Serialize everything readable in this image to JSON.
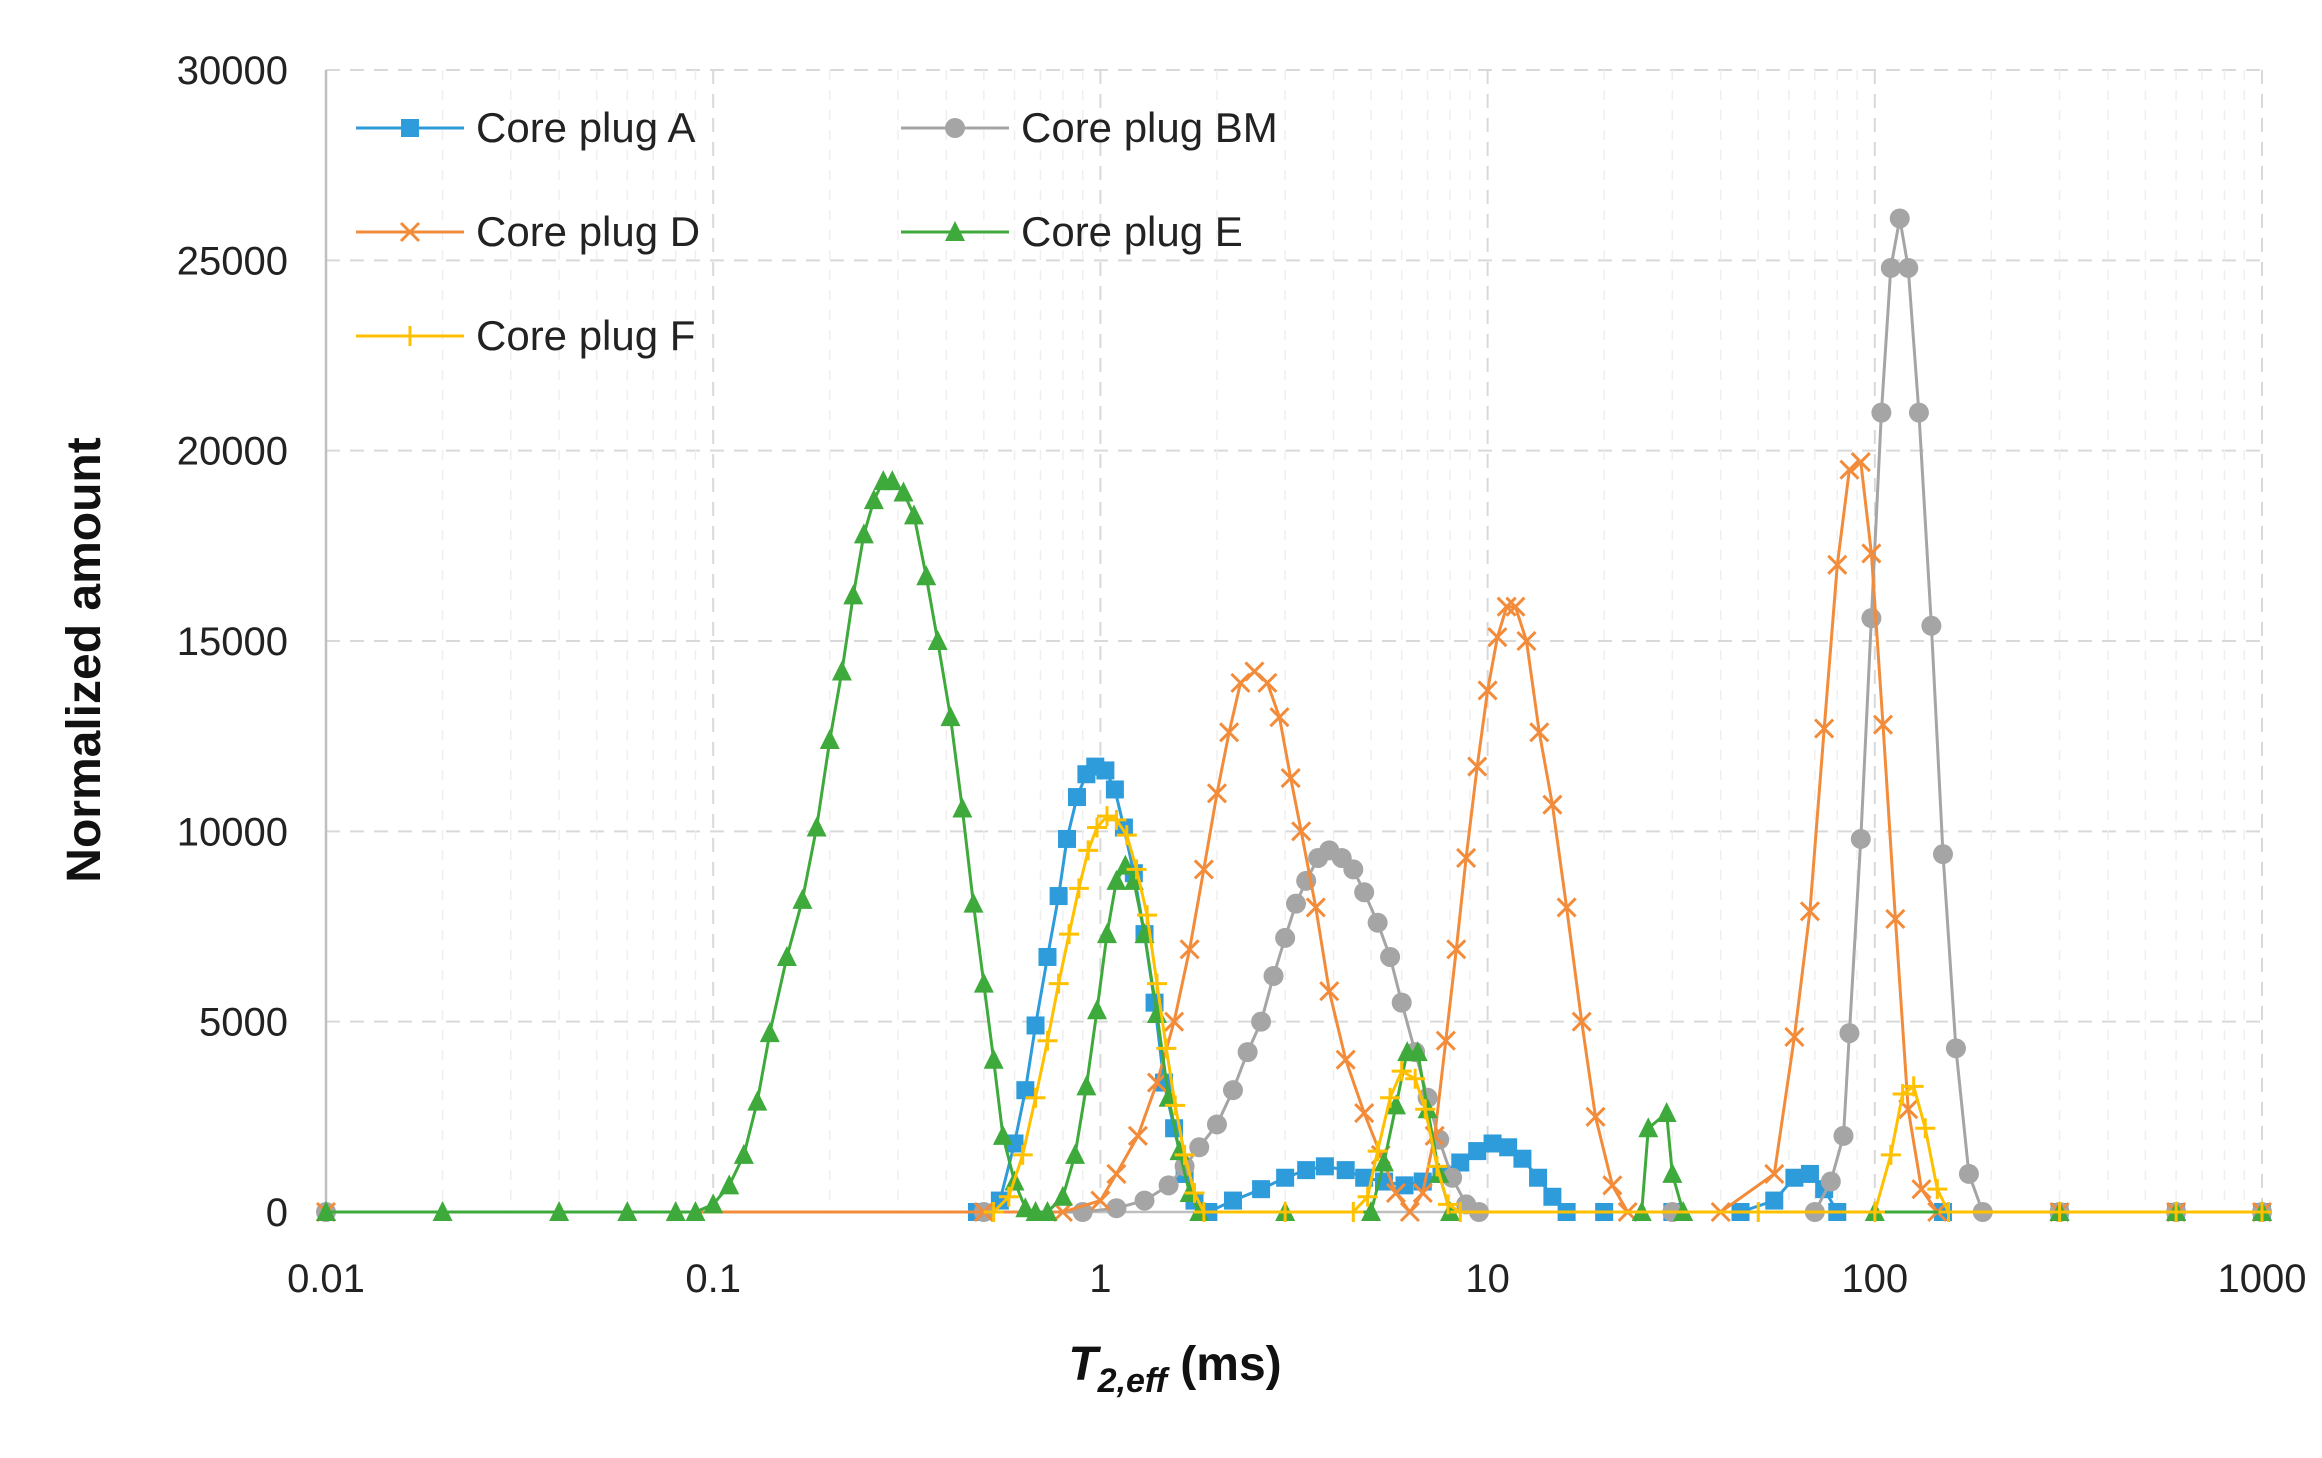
{
  "chart_data": {
    "type": "line",
    "title": "",
    "xlabel_main": "T",
    "xlabel_sub": "2,eff",
    "xlabel_unit": " (ms)",
    "ylabel": "Normalized amount",
    "xscale": "log",
    "xlim": [
      0.01,
      1000
    ],
    "ylim": [
      0,
      30000
    ],
    "x_ticks": [
      0.01,
      0.1,
      1,
      10,
      100,
      1000
    ],
    "x_tick_labels": [
      "0.01",
      "0.1",
      "1",
      "10",
      "100",
      "1000"
    ],
    "y_ticks": [
      0,
      5000,
      10000,
      15000,
      20000,
      25000,
      30000
    ],
    "y_tick_labels": [
      "0",
      "5000",
      "10000",
      "15000",
      "20000",
      "25000",
      "30000"
    ],
    "grid": true,
    "legend_position": "top-left",
    "series": [
      {
        "name": "Core plug A",
        "color": "#2E9BDA",
        "marker": "square",
        "points": [
          [
            0.48,
            0
          ],
          [
            0.55,
            300
          ],
          [
            0.6,
            1800
          ],
          [
            0.64,
            3200
          ],
          [
            0.68,
            4900
          ],
          [
            0.73,
            6700
          ],
          [
            0.78,
            8300
          ],
          [
            0.82,
            9800
          ],
          [
            0.87,
            10900
          ],
          [
            0.92,
            11500
          ],
          [
            0.97,
            11700
          ],
          [
            1.03,
            11600
          ],
          [
            1.09,
            11100
          ],
          [
            1.15,
            10100
          ],
          [
            1.22,
            8900
          ],
          [
            1.3,
            7300
          ],
          [
            1.38,
            5500
          ],
          [
            1.46,
            3400
          ],
          [
            1.55,
            2200
          ],
          [
            1.65,
            1000
          ],
          [
            1.75,
            300
          ],
          [
            1.9,
            0
          ],
          [
            2.2,
            300
          ],
          [
            2.6,
            600
          ],
          [
            3.0,
            900
          ],
          [
            3.4,
            1100
          ],
          [
            3.8,
            1200
          ],
          [
            4.3,
            1100
          ],
          [
            4.8,
            900
          ],
          [
            5.4,
            800
          ],
          [
            6.1,
            700
          ],
          [
            6.8,
            800
          ],
          [
            7.6,
            1000
          ],
          [
            8.5,
            1300
          ],
          [
            9.4,
            1600
          ],
          [
            10.3,
            1800
          ],
          [
            11.3,
            1700
          ],
          [
            12.3,
            1400
          ],
          [
            13.5,
            900
          ],
          [
            14.7,
            400
          ],
          [
            16,
            0
          ],
          [
            20,
            0
          ],
          [
            30,
            0
          ],
          [
            45,
            0
          ],
          [
            55,
            300
          ],
          [
            62,
            900
          ],
          [
            68,
            1000
          ],
          [
            74,
            600
          ],
          [
            80,
            0
          ],
          [
            150,
            0
          ],
          [
            300,
            0
          ],
          [
            600,
            0
          ],
          [
            1000,
            0
          ]
        ]
      },
      {
        "name": "Core plug BM",
        "color": "#A5A5A5",
        "marker": "circle",
        "points": [
          [
            0.01,
            0
          ],
          [
            0.5,
            0
          ],
          [
            0.9,
            0
          ],
          [
            1.1,
            100
          ],
          [
            1.3,
            300
          ],
          [
            1.5,
            700
          ],
          [
            1.65,
            1200
          ],
          [
            1.8,
            1700
          ],
          [
            2.0,
            2300
          ],
          [
            2.2,
            3200
          ],
          [
            2.4,
            4200
          ],
          [
            2.6,
            5000
          ],
          [
            2.8,
            6200
          ],
          [
            3.0,
            7200
          ],
          [
            3.2,
            8100
          ],
          [
            3.4,
            8700
          ],
          [
            3.65,
            9300
          ],
          [
            3.9,
            9500
          ],
          [
            4.2,
            9300
          ],
          [
            4.5,
            9000
          ],
          [
            4.8,
            8400
          ],
          [
            5.2,
            7600
          ],
          [
            5.6,
            6700
          ],
          [
            6.0,
            5500
          ],
          [
            6.5,
            4200
          ],
          [
            7.0,
            3000
          ],
          [
            7.5,
            1900
          ],
          [
            8.1,
            900
          ],
          [
            8.8,
            200
          ],
          [
            9.5,
            0
          ],
          [
            30,
            0
          ],
          [
            70,
            0
          ],
          [
            77,
            800
          ],
          [
            83,
            2000
          ],
          [
            86,
            4700
          ],
          [
            92,
            9800
          ],
          [
            98,
            15600
          ],
          [
            104,
            21000
          ],
          [
            110,
            24800
          ],
          [
            116,
            26100
          ],
          [
            122,
            24800
          ],
          [
            130,
            21000
          ],
          [
            140,
            15400
          ],
          [
            150,
            9400
          ],
          [
            162,
            4300
          ],
          [
            175,
            1000
          ],
          [
            190,
            0
          ],
          [
            300,
            0
          ],
          [
            600,
            0
          ],
          [
            1000,
            0
          ]
        ]
      },
      {
        "name": "Core plug D",
        "color": "#F28C3A",
        "marker": "x",
        "points": [
          [
            0.01,
            0
          ],
          [
            0.5,
            0
          ],
          [
            0.8,
            0
          ],
          [
            1.0,
            300
          ],
          [
            1.1,
            1000
          ],
          [
            1.25,
            2000
          ],
          [
            1.4,
            3400
          ],
          [
            1.55,
            5000
          ],
          [
            1.7,
            6900
          ],
          [
            1.85,
            9000
          ],
          [
            2.0,
            11000
          ],
          [
            2.15,
            12600
          ],
          [
            2.3,
            13900
          ],
          [
            2.5,
            14200
          ],
          [
            2.7,
            13900
          ],
          [
            2.9,
            13000
          ],
          [
            3.1,
            11400
          ],
          [
            3.3,
            10000
          ],
          [
            3.6,
            8000
          ],
          [
            3.9,
            5800
          ],
          [
            4.3,
            4000
          ],
          [
            4.8,
            2600
          ],
          [
            5.3,
            1500
          ],
          [
            5.8,
            500
          ],
          [
            6.3,
            0
          ],
          [
            6.8,
            500
          ],
          [
            7.3,
            2000
          ],
          [
            7.8,
            4500
          ],
          [
            8.3,
            6900
          ],
          [
            8.8,
            9300
          ],
          [
            9.4,
            11700
          ],
          [
            10.0,
            13700
          ],
          [
            10.6,
            15100
          ],
          [
            11.2,
            15900
          ],
          [
            11.8,
            15900
          ],
          [
            12.6,
            15000
          ],
          [
            13.6,
            12600
          ],
          [
            14.7,
            10700
          ],
          [
            16,
            8000
          ],
          [
            17.5,
            5000
          ],
          [
            19,
            2500
          ],
          [
            21,
            700
          ],
          [
            23,
            0
          ],
          [
            40,
            0
          ],
          [
            55,
            1000
          ],
          [
            62,
            4600
          ],
          [
            68,
            7900
          ],
          [
            74,
            12700
          ],
          [
            80,
            17000
          ],
          [
            86,
            19500
          ],
          [
            92,
            19700
          ],
          [
            98,
            17300
          ],
          [
            105,
            12800
          ],
          [
            113,
            7700
          ],
          [
            122,
            2700
          ],
          [
            132,
            600
          ],
          [
            145,
            0
          ],
          [
            300,
            0
          ],
          [
            600,
            0
          ],
          [
            1000,
            0
          ]
        ]
      },
      {
        "name": "Core plug E",
        "color": "#3FAA3C",
        "marker": "triangle",
        "points": [
          [
            0.01,
            0
          ],
          [
            0.02,
            0
          ],
          [
            0.04,
            0
          ],
          [
            0.06,
            0
          ],
          [
            0.08,
            0
          ],
          [
            0.09,
            0
          ],
          [
            0.1,
            200
          ],
          [
            0.11,
            700
          ],
          [
            0.12,
            1500
          ],
          [
            0.13,
            2900
          ],
          [
            0.14,
            4700
          ],
          [
            0.155,
            6700
          ],
          [
            0.17,
            8200
          ],
          [
            0.185,
            10100
          ],
          [
            0.2,
            12400
          ],
          [
            0.215,
            14200
          ],
          [
            0.23,
            16200
          ],
          [
            0.245,
            17800
          ],
          [
            0.26,
            18700
          ],
          [
            0.275,
            19200
          ],
          [
            0.29,
            19200
          ],
          [
            0.31,
            18900
          ],
          [
            0.33,
            18300
          ],
          [
            0.355,
            16700
          ],
          [
            0.38,
            15000
          ],
          [
            0.41,
            13000
          ],
          [
            0.44,
            10600
          ],
          [
            0.47,
            8100
          ],
          [
            0.5,
            6000
          ],
          [
            0.53,
            4000
          ],
          [
            0.56,
            2000
          ],
          [
            0.6,
            800
          ],
          [
            0.64,
            100
          ],
          [
            0.68,
            0
          ],
          [
            0.73,
            0
          ],
          [
            0.8,
            400
          ],
          [
            0.86,
            1500
          ],
          [
            0.92,
            3300
          ],
          [
            0.98,
            5300
          ],
          [
            1.04,
            7300
          ],
          [
            1.1,
            8700
          ],
          [
            1.16,
            9100
          ],
          [
            1.22,
            8700
          ],
          [
            1.3,
            7300
          ],
          [
            1.4,
            5200
          ],
          [
            1.5,
            3000
          ],
          [
            1.6,
            1600
          ],
          [
            1.7,
            500
          ],
          [
            1.8,
            0
          ],
          [
            3,
            0
          ],
          [
            5,
            0
          ],
          [
            5.4,
            1300
          ],
          [
            5.8,
            2800
          ],
          [
            6.2,
            4200
          ],
          [
            6.6,
            4200
          ],
          [
            7.0,
            2700
          ],
          [
            7.5,
            1000
          ],
          [
            8,
            0
          ],
          [
            25,
            0
          ],
          [
            26,
            2200
          ],
          [
            29,
            2600
          ],
          [
            30,
            1000
          ],
          [
            32,
            0
          ],
          [
            100,
            0
          ],
          [
            300,
            0
          ],
          [
            600,
            0
          ],
          [
            1000,
            0
          ]
        ]
      },
      {
        "name": "Core plug F",
        "color": "#FFC000",
        "marker": "plus",
        "points": [
          [
            0.53,
            0
          ],
          [
            0.58,
            400
          ],
          [
            0.63,
            1500
          ],
          [
            0.68,
            3000
          ],
          [
            0.73,
            4500
          ],
          [
            0.78,
            6000
          ],
          [
            0.83,
            7300
          ],
          [
            0.88,
            8500
          ],
          [
            0.93,
            9500
          ],
          [
            0.98,
            10100
          ],
          [
            1.04,
            10400
          ],
          [
            1.1,
            10300
          ],
          [
            1.17,
            9900
          ],
          [
            1.24,
            9000
          ],
          [
            1.32,
            7800
          ],
          [
            1.4,
            6000
          ],
          [
            1.48,
            4300
          ],
          [
            1.56,
            2800
          ],
          [
            1.65,
            1500
          ],
          [
            1.75,
            500
          ],
          [
            1.85,
            0
          ],
          [
            3,
            0
          ],
          [
            4.5,
            0
          ],
          [
            4.9,
            400
          ],
          [
            5.2,
            1600
          ],
          [
            5.6,
            3000
          ],
          [
            6.0,
            3700
          ],
          [
            6.5,
            3500
          ],
          [
            6.9,
            2700
          ],
          [
            7.4,
            1200
          ],
          [
            7.9,
            200
          ],
          [
            8.5,
            0
          ],
          [
            50,
            0
          ],
          [
            100,
            0
          ],
          [
            110,
            1500
          ],
          [
            118,
            3100
          ],
          [
            126,
            3300
          ],
          [
            135,
            2200
          ],
          [
            145,
            600
          ],
          [
            155,
            0
          ],
          [
            300,
            0
          ],
          [
            600,
            0
          ],
          [
            1000,
            0
          ]
        ]
      }
    ]
  }
}
